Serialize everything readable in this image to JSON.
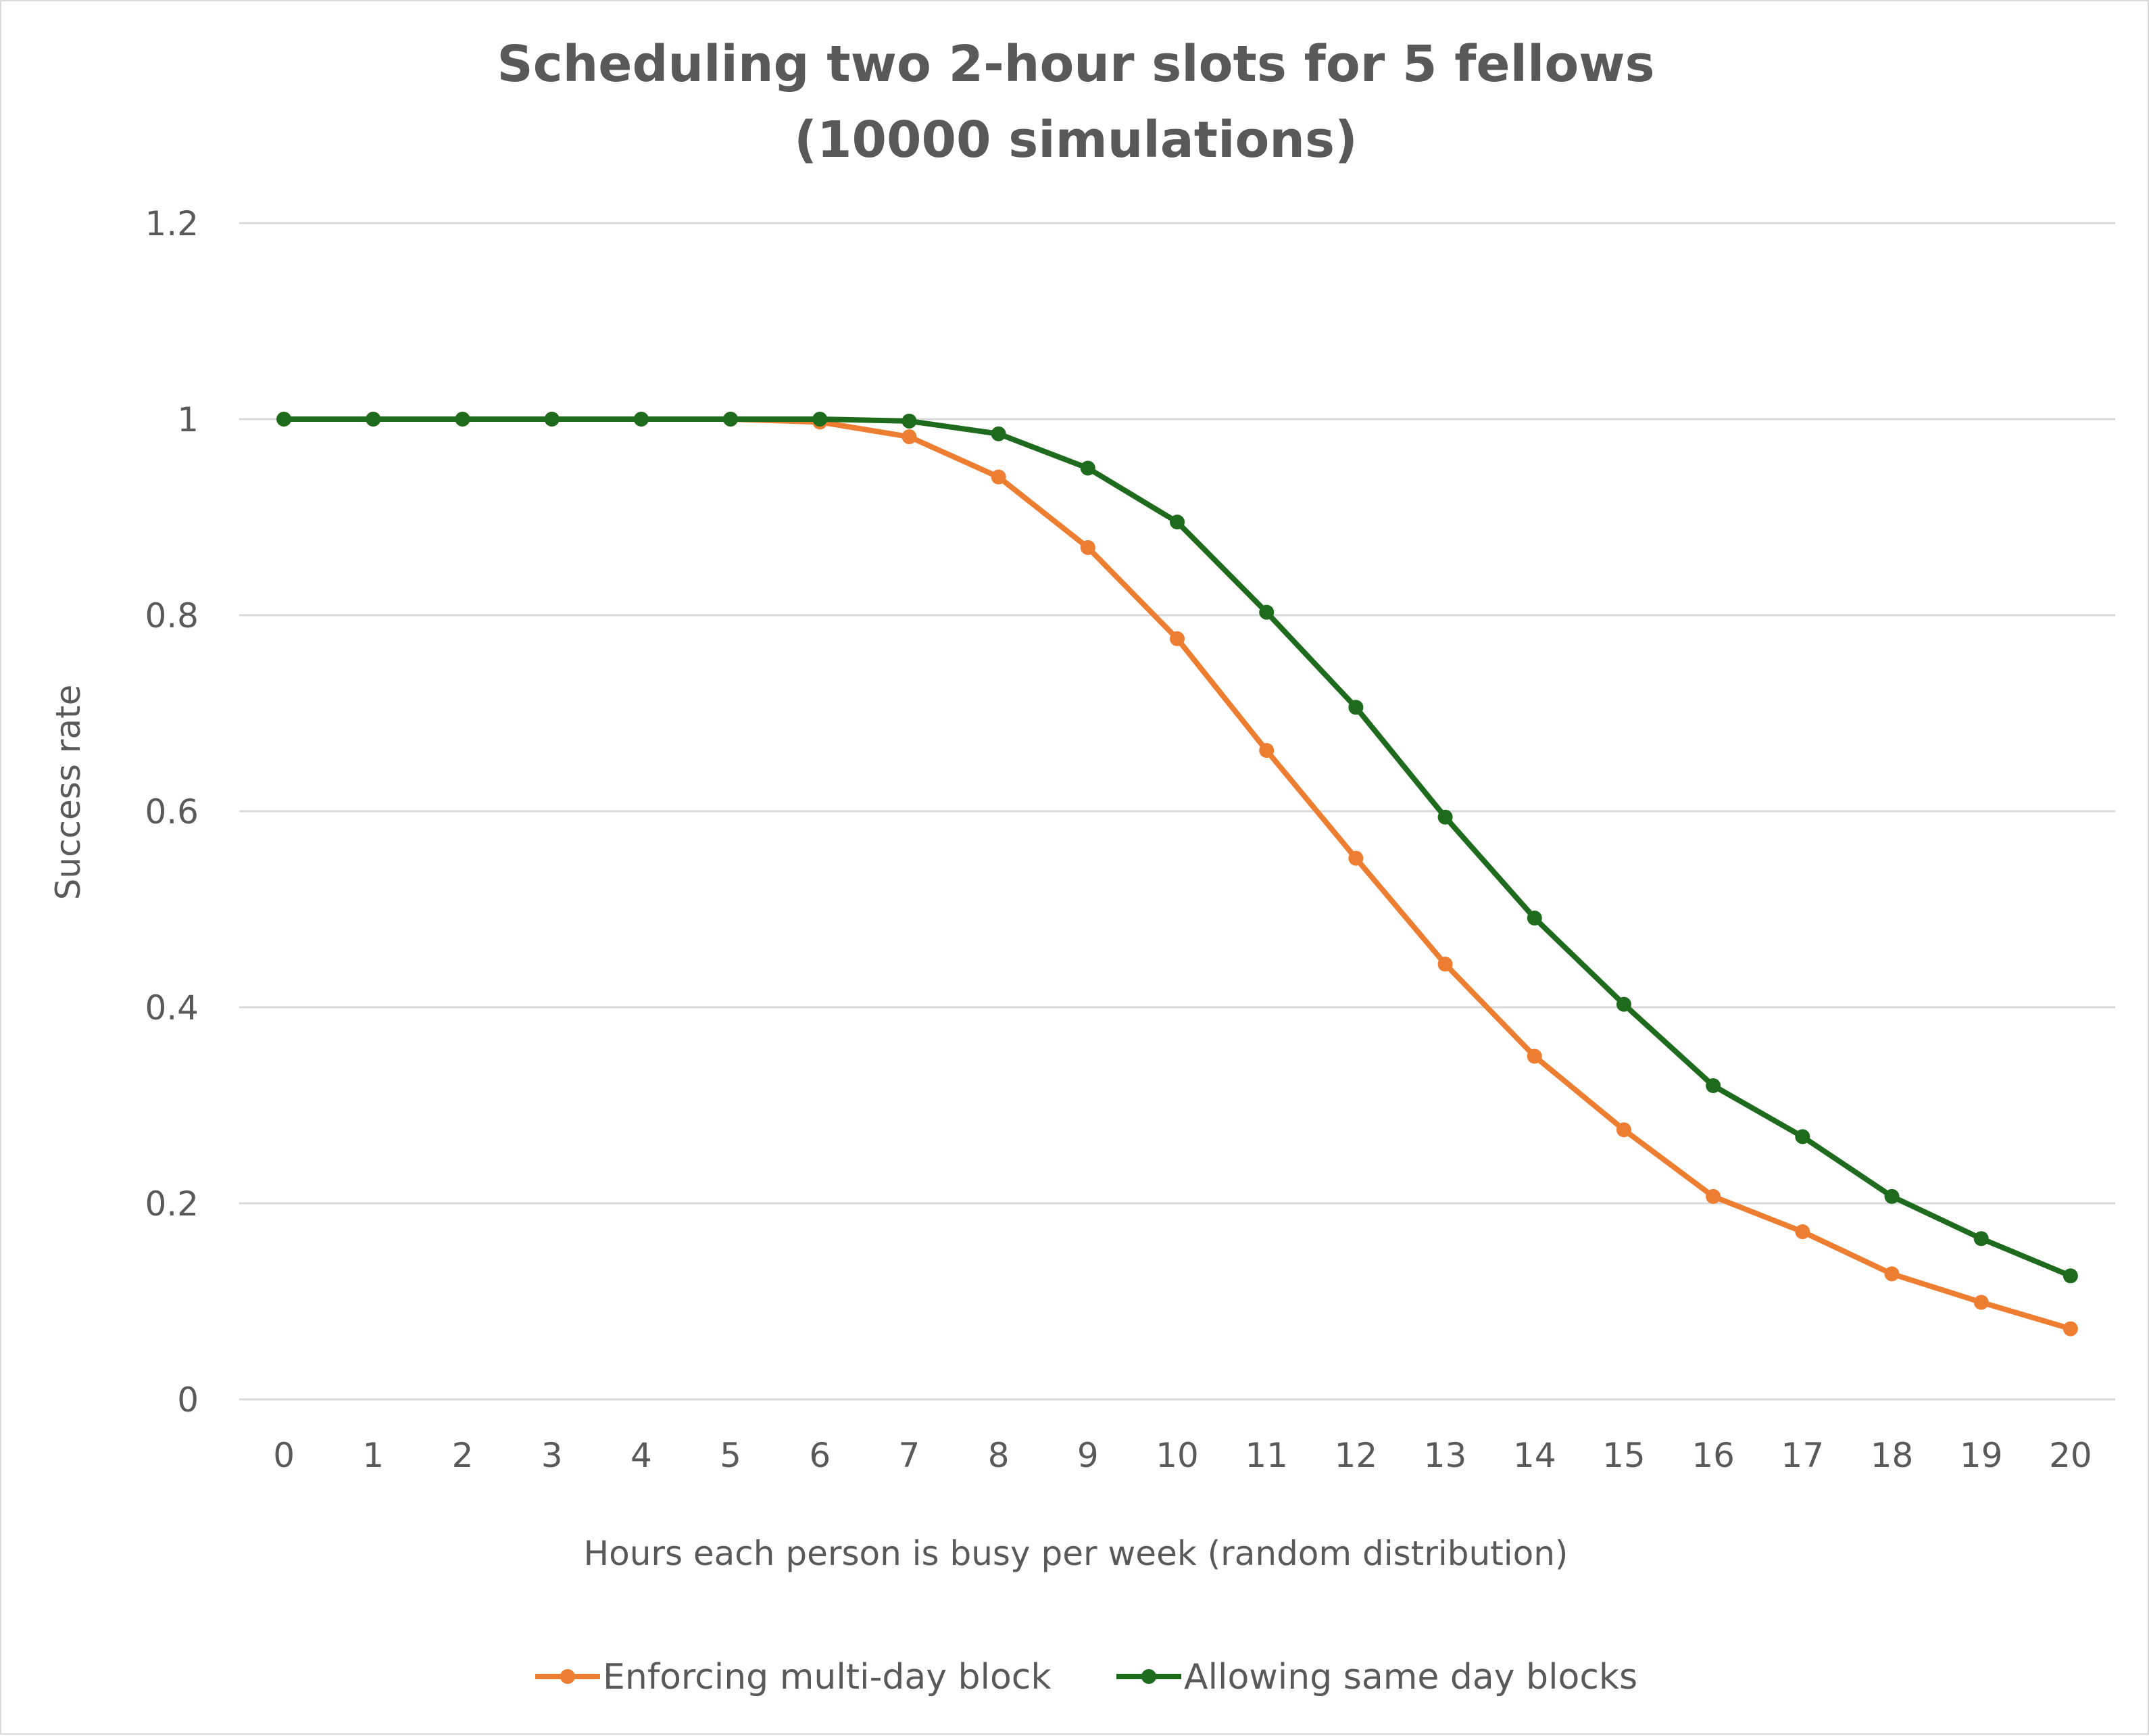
{
  "chart_data": {
    "type": "line",
    "title": "Scheduling two 2-hour slots for 5 fellows",
    "subtitle": "(10000 simulations)",
    "xlabel": "Hours each person is busy per week (random distribution)",
    "ylabel": "Success rate",
    "x": [
      0,
      1,
      2,
      3,
      4,
      5,
      6,
      7,
      8,
      9,
      10,
      11,
      12,
      13,
      14,
      15,
      16,
      17,
      18,
      19,
      20
    ],
    "x_tick_labels": [
      "0",
      "1",
      "2",
      "3",
      "4",
      "5",
      "6",
      "7",
      "8",
      "9",
      "10",
      "11",
      "12",
      "13",
      "14",
      "15",
      "16",
      "17",
      "18",
      "19",
      "20"
    ],
    "y_tick_labels": [
      "0",
      "0.2",
      "0.4",
      "0.6",
      "0.8",
      "1",
      "1.2"
    ],
    "y_ticks": [
      0,
      0.2,
      0.4,
      0.6,
      0.8,
      1.0,
      1.2
    ],
    "ylim": [
      0,
      1.2
    ],
    "grid": true,
    "legend_position": "bottom",
    "series": [
      {
        "name": "Enforcing multi-day block",
        "color": "#ED7D31",
        "values": [
          1.0,
          1.0,
          1.0,
          1.0,
          1.0,
          1.0,
          0.997,
          0.982,
          0.941,
          0.869,
          0.776,
          0.662,
          0.552,
          0.444,
          0.35,
          0.275,
          0.207,
          0.171,
          0.128,
          0.099,
          0.072
        ]
      },
      {
        "name": "Allowing same day blocks",
        "color": "#1E6B1E",
        "values": [
          1.0,
          1.0,
          1.0,
          1.0,
          1.0,
          1.0,
          1.0,
          0.998,
          0.985,
          0.95,
          0.895,
          0.803,
          0.706,
          0.594,
          0.491,
          0.403,
          0.32,
          0.268,
          0.207,
          0.164,
          0.126
        ]
      }
    ]
  }
}
